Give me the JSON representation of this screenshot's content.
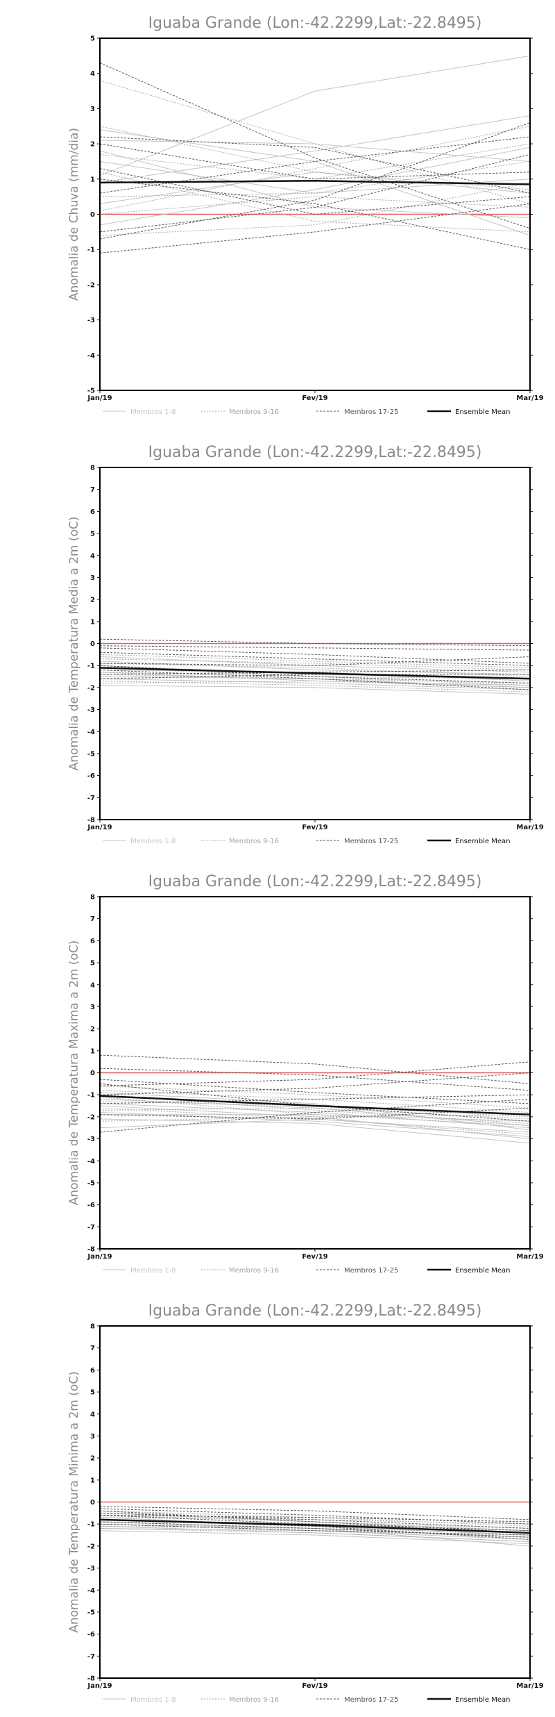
{
  "chart_data": [
    {
      "type": "line",
      "title": "Iguaba Grande (Lon:-42.2299,Lat:-22.8495)",
      "xlabel": "",
      "ylabel": "Anomalia de Chuva (mm/dia)",
      "categories": [
        "Jan/19",
        "Fev/19",
        "Mar/19"
      ],
      "ylim": [
        -5,
        5
      ],
      "yticks": [
        -5,
        -4,
        -3,
        -2,
        -1,
        0,
        1,
        2,
        3,
        4,
        5
      ],
      "zero_line_color": "#e06060",
      "legend": [
        "Membros 1-8",
        "Membros 9-16",
        "Membros 17-25",
        "Ensemble Mean"
      ],
      "series": [
        {
          "group": "Membros 1-8",
          "values": [
            1.1,
            3.5,
            4.5
          ]
        },
        {
          "group": "Membros 1-8",
          "values": [
            0.9,
            1.8,
            2.8
          ]
        },
        {
          "group": "Membros 1-8",
          "values": [
            2.1,
            2.0,
            1.5
          ]
        },
        {
          "group": "Membros 1-8",
          "values": [
            1.5,
            0.6,
            1.0
          ]
        },
        {
          "group": "Membros 1-8",
          "values": [
            0.3,
            1.2,
            0.6
          ]
        },
        {
          "group": "Membros 1-8",
          "values": [
            -0.3,
            0.7,
            1.9
          ]
        },
        {
          "group": "Membros 1-8",
          "values": [
            1.8,
            0.2,
            -0.1
          ]
        },
        {
          "group": "Membros 1-8",
          "values": [
            2.4,
            1.5,
            -0.6
          ]
        },
        {
          "group": "Membros 9-16",
          "values": [
            3.8,
            2.0,
            0.3
          ]
        },
        {
          "group": "Membros 9-16",
          "values": [
            1.7,
            1.0,
            2.0
          ]
        },
        {
          "group": "Membros 9-16",
          "values": [
            0.5,
            0.6,
            1.5
          ]
        },
        {
          "group": "Membros 9-16",
          "values": [
            2.5,
            1.2,
            0.7
          ]
        },
        {
          "group": "Membros 9-16",
          "values": [
            0.0,
            0.5,
            0.2
          ]
        },
        {
          "group": "Membros 9-16",
          "values": [
            -0.6,
            -0.3,
            0.9
          ]
        },
        {
          "group": "Membros 9-16",
          "values": [
            0.1,
            1.3,
            2.5
          ]
        },
        {
          "group": "Membros 9-16",
          "values": [
            1.2,
            -0.2,
            -0.5
          ]
        },
        {
          "group": "Membros 17-25",
          "values": [
            4.3,
            1.6,
            -0.4
          ]
        },
        {
          "group": "Membros 17-25",
          "values": [
            2.2,
            1.9,
            0.6
          ]
        },
        {
          "group": "Membros 17-25",
          "values": [
            -1.1,
            -0.5,
            0.3
          ]
        },
        {
          "group": "Membros 17-25",
          "values": [
            -0.7,
            0.4,
            2.6
          ]
        },
        {
          "group": "Membros 17-25",
          "values": [
            1.0,
            0.3,
            -1.0
          ]
        },
        {
          "group": "Membros 17-25",
          "values": [
            0.6,
            1.5,
            2.2
          ]
        },
        {
          "group": "Membros 17-25",
          "values": [
            1.3,
            0.0,
            0.5
          ]
        },
        {
          "group": "Membros 17-25",
          "values": [
            2.0,
            1.0,
            1.2
          ]
        },
        {
          "group": "Membros 17-25",
          "values": [
            -0.5,
            0.2,
            1.7
          ]
        },
        {
          "group": "Ensemble Mean",
          "values": [
            0.9,
            0.95,
            0.85
          ]
        }
      ]
    },
    {
      "type": "line",
      "title": "Iguaba Grande (Lon:-42.2299,Lat:-22.8495)",
      "xlabel": "",
      "ylabel": "Anomalia de Temperatura Media a 2m (oC)",
      "categories": [
        "Jan/19",
        "Fev/19",
        "Mar/19"
      ],
      "ylim": [
        -8,
        8
      ],
      "yticks": [
        -8,
        -7,
        -6,
        -5,
        -4,
        -3,
        -2,
        -1,
        0,
        1,
        2,
        3,
        4,
        5,
        6,
        7,
        8
      ],
      "zero_line_color": "#e06060",
      "legend": [
        "Membros 1-8",
        "Membros 9-16",
        "Membros 17-25",
        "Ensemble Mean"
      ],
      "series": [
        {
          "group": "Membros 1-8",
          "values": [
            -1.9,
            -2.0,
            -2.3
          ]
        },
        {
          "group": "Membros 1-8",
          "values": [
            -1.6,
            -1.8,
            -2.1
          ]
        },
        {
          "group": "Membros 1-8",
          "values": [
            -1.3,
            -1.7,
            -1.9
          ]
        },
        {
          "group": "Membros 1-8",
          "values": [
            -1.0,
            -1.4,
            -1.6
          ]
        },
        {
          "group": "Membros 1-8",
          "values": [
            -0.8,
            -1.2,
            -1.4
          ]
        },
        {
          "group": "Membros 1-8",
          "values": [
            -1.5,
            -1.6,
            -2.0
          ]
        },
        {
          "group": "Membros 1-8",
          "values": [
            -1.2,
            -1.3,
            -1.7
          ]
        },
        {
          "group": "Membros 1-8",
          "values": [
            -0.6,
            -1.0,
            -1.3
          ]
        },
        {
          "group": "Membros 9-16",
          "values": [
            -1.7,
            -1.9,
            -2.2
          ]
        },
        {
          "group": "Membros 9-16",
          "values": [
            -1.4,
            -1.6,
            -1.8
          ]
        },
        {
          "group": "Membros 9-16",
          "values": [
            -1.1,
            -1.5,
            -1.6
          ]
        },
        {
          "group": "Membros 9-16",
          "values": [
            -0.9,
            -1.1,
            -1.5
          ]
        },
        {
          "group": "Membros 9-16",
          "values": [
            -0.5,
            -0.8,
            -1.1
          ]
        },
        {
          "group": "Membros 9-16",
          "values": [
            -1.3,
            -1.5,
            -1.9
          ]
        },
        {
          "group": "Membros 9-16",
          "values": [
            -1.8,
            -1.7,
            -2.0
          ]
        },
        {
          "group": "Membros 9-16",
          "values": [
            -0.7,
            -0.9,
            -1.2
          ]
        },
        {
          "group": "Membros 17-25",
          "values": [
            0.2,
            0.0,
            -0.1
          ]
        },
        {
          "group": "Membros 17-25",
          "values": [
            -0.2,
            -0.5,
            -0.9
          ]
        },
        {
          "group": "Membros 17-25",
          "values": [
            -0.9,
            -1.0,
            -0.6
          ]
        },
        {
          "group": "Membros 17-25",
          "values": [
            -1.4,
            -1.3,
            -1.2
          ]
        },
        {
          "group": "Membros 17-25",
          "values": [
            -1.0,
            -1.5,
            -1.8
          ]
        },
        {
          "group": "Membros 17-25",
          "values": [
            -0.4,
            -0.7,
            -1.0
          ]
        },
        {
          "group": "Membros 17-25",
          "values": [
            -1.6,
            -1.4,
            -1.4
          ]
        },
        {
          "group": "Membros 17-25",
          "values": [
            -0.1,
            -0.2,
            -0.3
          ]
        },
        {
          "group": "Membros 17-25",
          "values": [
            -1.2,
            -1.6,
            -2.1
          ]
        },
        {
          "group": "Ensemble Mean",
          "values": [
            -1.1,
            -1.35,
            -1.6
          ]
        }
      ]
    },
    {
      "type": "line",
      "title": "Iguaba Grande (Lon:-42.2299,Lat:-22.8495)",
      "xlabel": "",
      "ylabel": "Anomalia de Temperatura Maxima a 2m (oC)",
      "categories": [
        "Jan/19",
        "Fev/19",
        "Mar/19"
      ],
      "ylim": [
        -8,
        8
      ],
      "yticks": [
        -8,
        -7,
        -6,
        -5,
        -4,
        -3,
        -2,
        -1,
        0,
        1,
        2,
        3,
        4,
        5,
        6,
        7,
        8
      ],
      "zero_line_color": "#e06060",
      "legend": [
        "Membros 1-8",
        "Membros 9-16",
        "Membros 17-25",
        "Ensemble Mean"
      ],
      "series": [
        {
          "group": "Membros 1-8",
          "values": [
            -2.1,
            -2.3,
            -3.2
          ]
        },
        {
          "group": "Membros 1-8",
          "values": [
            -1.8,
            -2.2,
            -2.9
          ]
        },
        {
          "group": "Membros 1-8",
          "values": [
            -1.5,
            -2.0,
            -3.0
          ]
        },
        {
          "group": "Membros 1-8",
          "values": [
            -1.2,
            -1.6,
            -2.4
          ]
        },
        {
          "group": "Membros 1-8",
          "values": [
            -0.9,
            -1.4,
            -2.6
          ]
        },
        {
          "group": "Membros 1-8",
          "values": [
            -1.9,
            -1.9,
            -2.2
          ]
        },
        {
          "group": "Membros 1-8",
          "values": [
            -1.4,
            -1.8,
            -2.5
          ]
        },
        {
          "group": "Membros 1-8",
          "values": [
            -2.5,
            -2.1,
            -2.7
          ]
        },
        {
          "group": "Membros 9-16",
          "values": [
            -1.6,
            -2.1,
            -2.8
          ]
        },
        {
          "group": "Membros 9-16",
          "values": [
            -1.3,
            -1.5,
            -2.0
          ]
        },
        {
          "group": "Membros 9-16",
          "values": [
            -1.0,
            -1.7,
            -2.3
          ]
        },
        {
          "group": "Membros 9-16",
          "values": [
            -0.8,
            -1.2,
            -1.8
          ]
        },
        {
          "group": "Membros 9-16",
          "values": [
            -2.2,
            -2.0,
            -1.9
          ]
        },
        {
          "group": "Membros 9-16",
          "values": [
            -1.7,
            -1.6,
            -2.1
          ]
        },
        {
          "group": "Membros 9-16",
          "values": [
            -0.6,
            -1.0,
            -1.6
          ]
        },
        {
          "group": "Membros 9-16",
          "values": [
            -1.1,
            -1.9,
            -2.4
          ]
        },
        {
          "group": "Membros 17-25",
          "values": [
            0.8,
            0.4,
            -0.5
          ]
        },
        {
          "group": "Membros 17-25",
          "values": [
            0.2,
            -0.1,
            -0.8
          ]
        },
        {
          "group": "Membros 17-25",
          "values": [
            -0.6,
            -0.3,
            0.5
          ]
        },
        {
          "group": "Membros 17-25",
          "values": [
            -2.7,
            -1.8,
            -1.2
          ]
        },
        {
          "group": "Membros 17-25",
          "values": [
            -0.3,
            -0.9,
            -1.4
          ]
        },
        {
          "group": "Membros 17-25",
          "values": [
            -1.0,
            -0.7,
            0.0
          ]
        },
        {
          "group": "Membros 17-25",
          "values": [
            -1.4,
            -1.2,
            -1.0
          ]
        },
        {
          "group": "Membros 17-25",
          "values": [
            -0.5,
            -1.5,
            -2.2
          ]
        },
        {
          "group": "Membros 17-25",
          "values": [
            -1.9,
            -2.1,
            -1.6
          ]
        },
        {
          "group": "Ensemble Mean",
          "values": [
            -1.05,
            -1.5,
            -1.9
          ]
        }
      ]
    },
    {
      "type": "line",
      "title": "Iguaba Grande (Lon:-42.2299,Lat:-22.8495)",
      "xlabel": "",
      "ylabel": "Anomalia de Temperatura Minima a 2m (oC)",
      "categories": [
        "Jan/19",
        "Fev/19",
        "Mar/19"
      ],
      "ylim": [
        -8,
        8
      ],
      "yticks": [
        -8,
        -7,
        -6,
        -5,
        -4,
        -3,
        -2,
        -1,
        0,
        1,
        2,
        3,
        4,
        5,
        6,
        7,
        8
      ],
      "zero_line_color": "#e06060",
      "legend": [
        "Membros 1-8",
        "Membros 9-16",
        "Membros 17-25",
        "Ensemble Mean"
      ],
      "series": [
        {
          "group": "Membros 1-8",
          "values": [
            -1.3,
            -1.5,
            -1.9
          ]
        },
        {
          "group": "Membros 1-8",
          "values": [
            -1.1,
            -1.4,
            -1.8
          ]
        },
        {
          "group": "Membros 1-8",
          "values": [
            -0.9,
            -1.2,
            -1.6
          ]
        },
        {
          "group": "Membros 1-8",
          "values": [
            -0.7,
            -1.1,
            -1.5
          ]
        },
        {
          "group": "Membros 1-8",
          "values": [
            -1.2,
            -1.3,
            -1.7
          ]
        },
        {
          "group": "Membros 1-8",
          "values": [
            -0.5,
            -0.9,
            -1.3
          ]
        },
        {
          "group": "Membros 1-8",
          "values": [
            -1.0,
            -1.2,
            -2.0
          ]
        },
        {
          "group": "Membros 1-8",
          "values": [
            -0.8,
            -1.0,
            -1.4
          ]
        },
        {
          "group": "Membros 9-16",
          "values": [
            -1.2,
            -1.4,
            -1.8
          ]
        },
        {
          "group": "Membros 9-16",
          "values": [
            -1.0,
            -1.3,
            -1.6
          ]
        },
        {
          "group": "Membros 9-16",
          "values": [
            -0.8,
            -1.1,
            -1.5
          ]
        },
        {
          "group": "Membros 9-16",
          "values": [
            -0.6,
            -0.9,
            -1.2
          ]
        },
        {
          "group": "Membros 9-16",
          "values": [
            -0.4,
            -0.7,
            -1.1
          ]
        },
        {
          "group": "Membros 9-16",
          "values": [
            -1.1,
            -1.2,
            -1.4
          ]
        },
        {
          "group": "Membros 9-16",
          "values": [
            -0.9,
            -1.0,
            -1.3
          ]
        },
        {
          "group": "Membros 9-16",
          "values": [
            -0.7,
            -0.8,
            -1.0
          ]
        },
        {
          "group": "Membros 17-25",
          "values": [
            -0.3,
            -0.6,
            -1.0
          ]
        },
        {
          "group": "Membros 17-25",
          "values": [
            -0.5,
            -0.8,
            -1.2
          ]
        },
        {
          "group": "Membros 17-25",
          "values": [
            -0.6,
            -1.0,
            -1.3
          ]
        },
        {
          "group": "Membros 17-25",
          "values": [
            -0.8,
            -1.1,
            -1.7
          ]
        },
        {
          "group": "Membros 17-25",
          "values": [
            -1.0,
            -1.3,
            -1.5
          ]
        },
        {
          "group": "Membros 17-25",
          "values": [
            -0.2,
            -0.4,
            -0.8
          ]
        },
        {
          "group": "Membros 17-25",
          "values": [
            -0.4,
            -0.9,
            -1.4
          ]
        },
        {
          "group": "Membros 17-25",
          "values": [
            -0.9,
            -1.2,
            -1.6
          ]
        },
        {
          "group": "Membros 17-25",
          "values": [
            -0.6,
            -0.7,
            -0.9
          ]
        },
        {
          "group": "Ensemble Mean",
          "values": [
            -0.8,
            -1.05,
            -1.4
          ]
        }
      ]
    }
  ],
  "legend_styles": {
    "Membros 1-8": {
      "color": "#c4c4c4",
      "dash": "none",
      "width": 1
    },
    "Membros 9-16": {
      "color": "#a6a6a6",
      "dash": "2,2",
      "width": 1
    },
    "Membros 17-25": {
      "color": "#555555",
      "dash": "3,2",
      "width": 1
    },
    "Ensemble Mean": {
      "color": "#111111",
      "dash": "none",
      "width": 2.5
    }
  }
}
